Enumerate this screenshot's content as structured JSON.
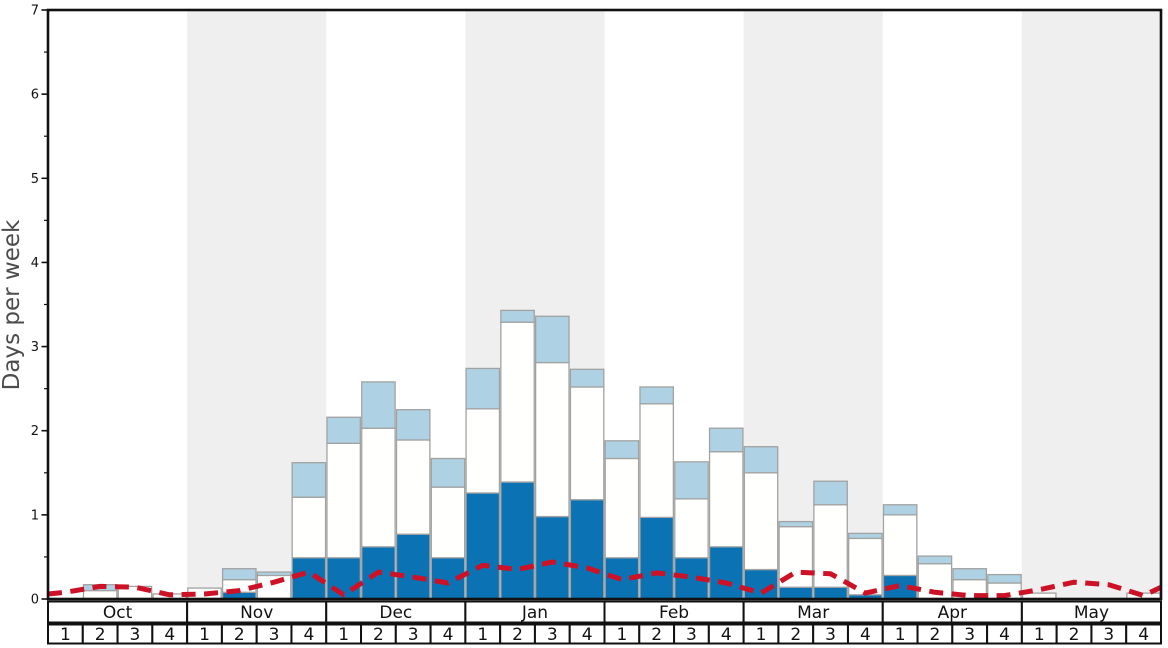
{
  "chart_data": {
    "type": "stacked-bar+line",
    "title": "",
    "ylabel": "Days per week",
    "xlabel": "",
    "ylim": [
      0,
      7
    ],
    "y_major_ticks": [
      0,
      1,
      2,
      3,
      4,
      5,
      6,
      7
    ],
    "y_minor_tick_step": 0.5,
    "grid": false,
    "legend": "none",
    "months": [
      "Oct",
      "Nov",
      "Dec",
      "Jan",
      "Feb",
      "Mar",
      "Apr",
      "May"
    ],
    "week_labels": [
      "1",
      "2",
      "3",
      "4"
    ],
    "shaded_months": [
      "Nov",
      "Jan",
      "Mar",
      "May"
    ],
    "categories": [
      "Oct-1",
      "Oct-2",
      "Oct-3",
      "Oct-4",
      "Nov-1",
      "Nov-2",
      "Nov-3",
      "Nov-4",
      "Dec-1",
      "Dec-2",
      "Dec-3",
      "Dec-4",
      "Jan-1",
      "Jan-2",
      "Jan-3",
      "Jan-4",
      "Feb-1",
      "Feb-2",
      "Feb-3",
      "Feb-4",
      "Mar-1",
      "Mar-2",
      "Mar-3",
      "Mar-4",
      "Apr-1",
      "Apr-2",
      "Apr-3",
      "Apr-4",
      "May-1",
      "May-2",
      "May-3",
      "May-4"
    ],
    "series": [
      {
        "name": "dark-blue-segment",
        "color": "#0b73b4",
        "values": [
          0,
          0,
          0,
          0,
          0,
          0.08,
          0,
          0.49,
          0.49,
          0.62,
          0.77,
          0.49,
          1.26,
          1.39,
          0.98,
          1.18,
          0.49,
          0.97,
          0.49,
          0.62,
          0.35,
          0.14,
          0.14,
          0.05,
          0.28,
          0,
          0,
          0,
          0,
          0,
          0,
          0
        ]
      },
      {
        "name": "white-segment",
        "color": "#fffffd",
        "values": [
          0,
          0.1,
          0.15,
          0.06,
          0.13,
          0.15,
          0.28,
          0.72,
          1.36,
          1.41,
          1.12,
          0.84,
          1.0,
          1.9,
          1.83,
          1.34,
          1.18,
          1.35,
          0.7,
          1.13,
          1.15,
          0.72,
          0.98,
          0.67,
          0.72,
          0.42,
          0.23,
          0.19,
          0.07,
          0,
          0,
          0.07
        ]
      },
      {
        "name": "light-blue-segment",
        "color": "#aed2e3",
        "values": [
          0,
          0.07,
          0,
          0,
          0,
          0.13,
          0.04,
          0.41,
          0.31,
          0.55,
          0.36,
          0.34,
          0.48,
          0.14,
          0.55,
          0.21,
          0.21,
          0.2,
          0.44,
          0.28,
          0.31,
          0.06,
          0.28,
          0.06,
          0.12,
          0.09,
          0.13,
          0.1,
          0,
          0,
          0,
          0
        ]
      }
    ],
    "line": {
      "name": "red-dashed-line",
      "color": "#cd1126",
      "style": "dashed",
      "edge_start": 0.06,
      "edge_end": 0.14,
      "values": [
        0.08,
        0.15,
        0.14,
        0.05,
        0.06,
        0.1,
        0.2,
        0.32,
        0.05,
        0.32,
        0.26,
        0.19,
        0.4,
        0.35,
        0.44,
        0.37,
        0.23,
        0.31,
        0.26,
        0.19,
        0.07,
        0.32,
        0.3,
        0.07,
        0.16,
        0.08,
        0.04,
        0.04,
        0.11,
        0.2,
        0.17,
        0.04
      ]
    },
    "colors": {
      "band_shade": "#efefef",
      "plot_background": "#ffffff",
      "bar_border": "#a2a2a2",
      "axis": "#111111",
      "tick_label": "#111111",
      "month_label": "#111111",
      "week_label": "#111111",
      "ylabel": "#4c4c4c"
    }
  }
}
